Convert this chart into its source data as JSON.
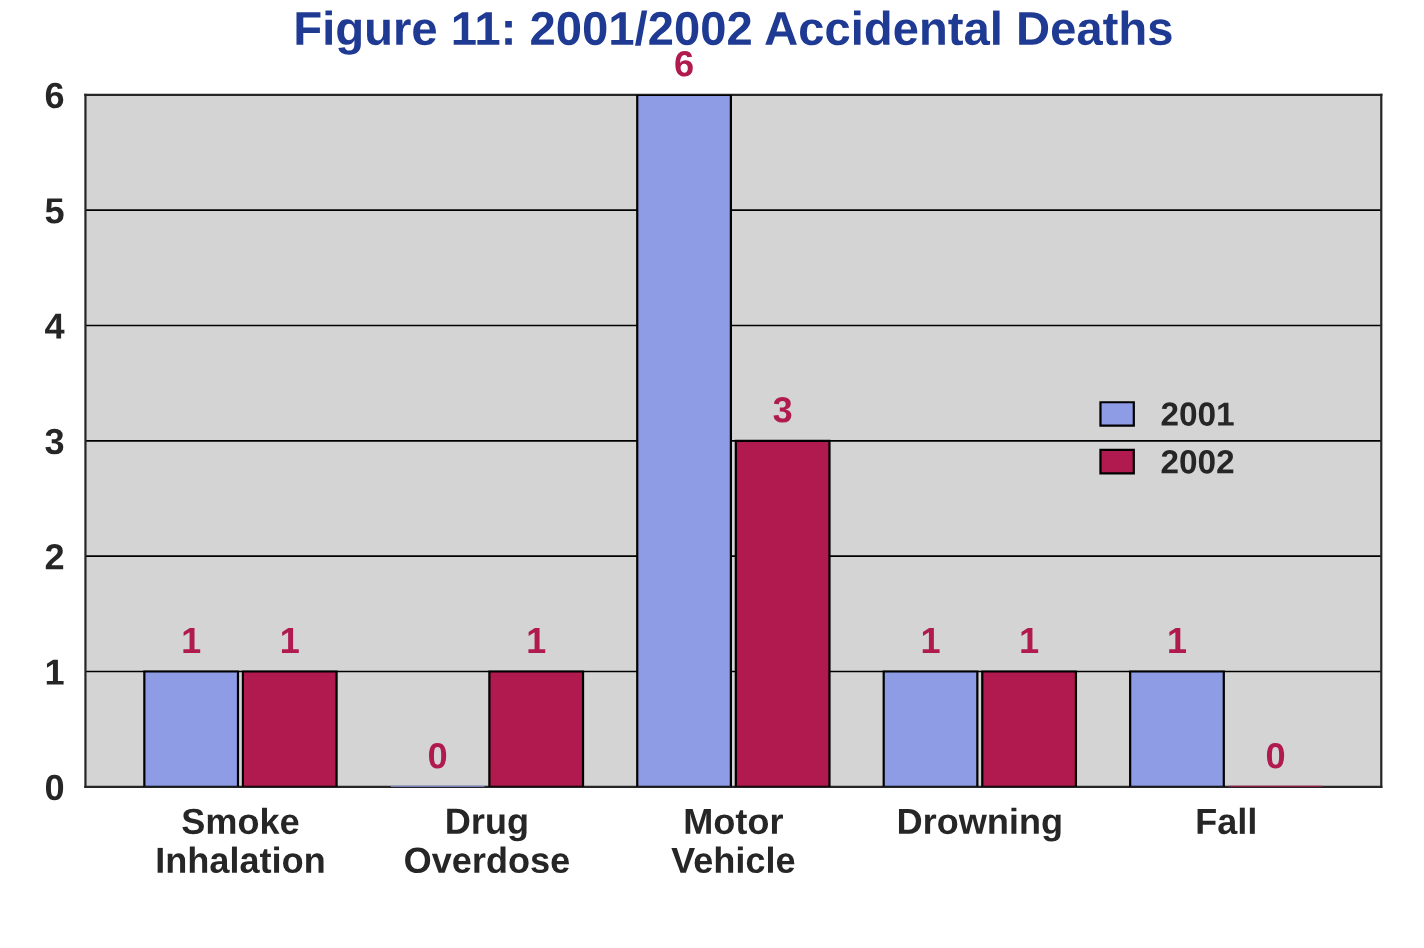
{
  "chart_data": {
    "type": "bar",
    "title": "Figure 11: 2001/2002 Accidental Deaths",
    "categories": [
      "Smoke\nInhalation",
      "Drug\nOverdose",
      "Motor\nVehicle",
      "Drowning",
      "Fall"
    ],
    "series": [
      {
        "name": "2001",
        "color": "#8e9ce6",
        "values": [
          1,
          0,
          6,
          1,
          1
        ]
      },
      {
        "name": "2002",
        "color": "#b01a4e",
        "values": [
          1,
          1,
          3,
          1,
          0
        ]
      }
    ],
    "ylim": [
      0,
      6
    ],
    "yticks": [
      0,
      1,
      2,
      3,
      4,
      5,
      6
    ],
    "grid": "y",
    "legend": "right",
    "data_labels": true
  }
}
